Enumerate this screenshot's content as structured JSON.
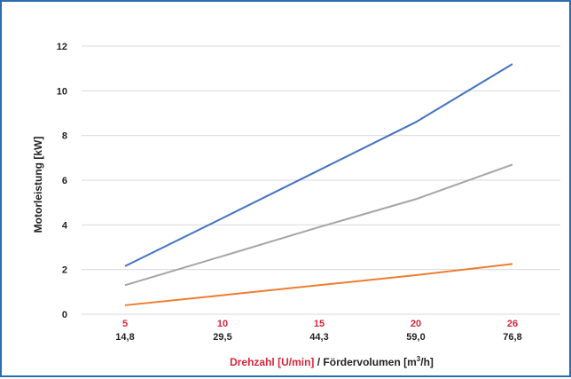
{
  "chart_data": {
    "type": "line",
    "ylabel": "Motorleistung [kW]",
    "xlabel_red": "Drehzahl [U/min]",
    "xlabel_black": " / Fördervolumen [m",
    "xlabel_sup": "3",
    "xlabel_end": "/h]",
    "ylim": [
      0,
      12
    ],
    "yticks": [
      "0",
      "2",
      "4",
      "6",
      "8",
      "10",
      "12"
    ],
    "ytick_values": [
      0,
      2,
      4,
      6,
      8,
      10,
      12
    ],
    "categories_rpm": [
      "5",
      "10",
      "15",
      "20",
      "26"
    ],
    "categories_flow": [
      "14,8",
      "29,5",
      "44,3",
      "59,0",
      "76,8"
    ],
    "grid": true,
    "series": [
      {
        "color": "#4472c4",
        "values": [
          2.15,
          4.3,
          6.45,
          8.6,
          11.2
        ]
      },
      {
        "color": "#a5a5a5",
        "values": [
          1.3,
          2.6,
          3.9,
          5.15,
          6.7
        ]
      },
      {
        "color": "#ed7d31",
        "values": [
          0.4,
          0.85,
          1.3,
          1.75,
          2.25
        ]
      }
    ]
  }
}
